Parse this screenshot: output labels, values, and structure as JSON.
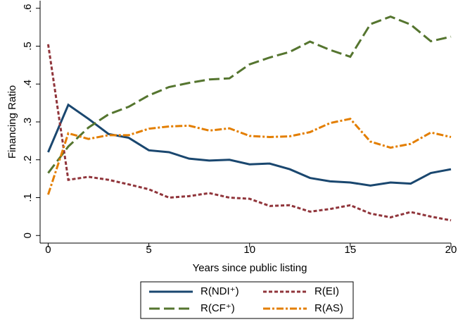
{
  "chart_data": {
    "type": "line",
    "x_label": "Years since public listing",
    "y_label": "Financing Ratio",
    "x": [
      0,
      1,
      2,
      3,
      4,
      5,
      6,
      7,
      8,
      9,
      10,
      11,
      12,
      13,
      14,
      15,
      16,
      17,
      18,
      19,
      20
    ],
    "series": [
      {
        "name": "R(NDI⁺)",
        "color": "#1a476f",
        "style": "solid",
        "values": [
          0.22,
          0.345,
          0.308,
          0.268,
          0.258,
          0.225,
          0.22,
          0.203,
          0.198,
          0.2,
          0.188,
          0.19,
          0.175,
          0.152,
          0.143,
          0.14,
          0.132,
          0.14,
          0.137,
          0.165,
          0.175
        ]
      },
      {
        "name": "R(EI)",
        "color": "#90353b",
        "style": "shortdash",
        "values": [
          0.505,
          0.147,
          0.155,
          0.147,
          0.135,
          0.122,
          0.1,
          0.104,
          0.112,
          0.1,
          0.097,
          0.078,
          0.08,
          0.063,
          0.07,
          0.08,
          0.058,
          0.048,
          0.062,
          0.05,
          0.04
        ]
      },
      {
        "name": "R(CF⁺)",
        "color": "#55752f",
        "style": "longdash",
        "values": [
          0.165,
          0.235,
          0.285,
          0.32,
          0.34,
          0.37,
          0.392,
          0.403,
          0.412,
          0.415,
          0.452,
          0.47,
          0.485,
          0.512,
          0.49,
          0.472,
          0.558,
          0.578,
          0.557,
          0.513,
          0.525
        ]
      },
      {
        "name": "R(AS)",
        "color": "#e37e00",
        "style": "dashdot",
        "values": [
          0.108,
          0.27,
          0.255,
          0.265,
          0.265,
          0.282,
          0.288,
          0.29,
          0.277,
          0.283,
          0.263,
          0.26,
          0.262,
          0.273,
          0.297,
          0.308,
          0.248,
          0.232,
          0.242,
          0.272,
          0.26
        ]
      }
    ],
    "xlim": [
      -0.4,
      20
    ],
    "xticks": [
      0,
      5,
      10,
      15,
      20
    ],
    "ylim": [
      -0.02,
      0.62
    ],
    "yticks": [
      0,
      {
        "value": 0.1,
        "label": ".1"
      },
      {
        "value": 0.2,
        "label": ".2"
      },
      {
        "value": 0.3,
        "label": ".3"
      },
      {
        "value": 0.4,
        "label": ".4"
      },
      {
        "value": 0.5,
        "label": ".5"
      },
      {
        "value": 0.6,
        "label": ".6"
      }
    ],
    "legend": "bottom"
  }
}
